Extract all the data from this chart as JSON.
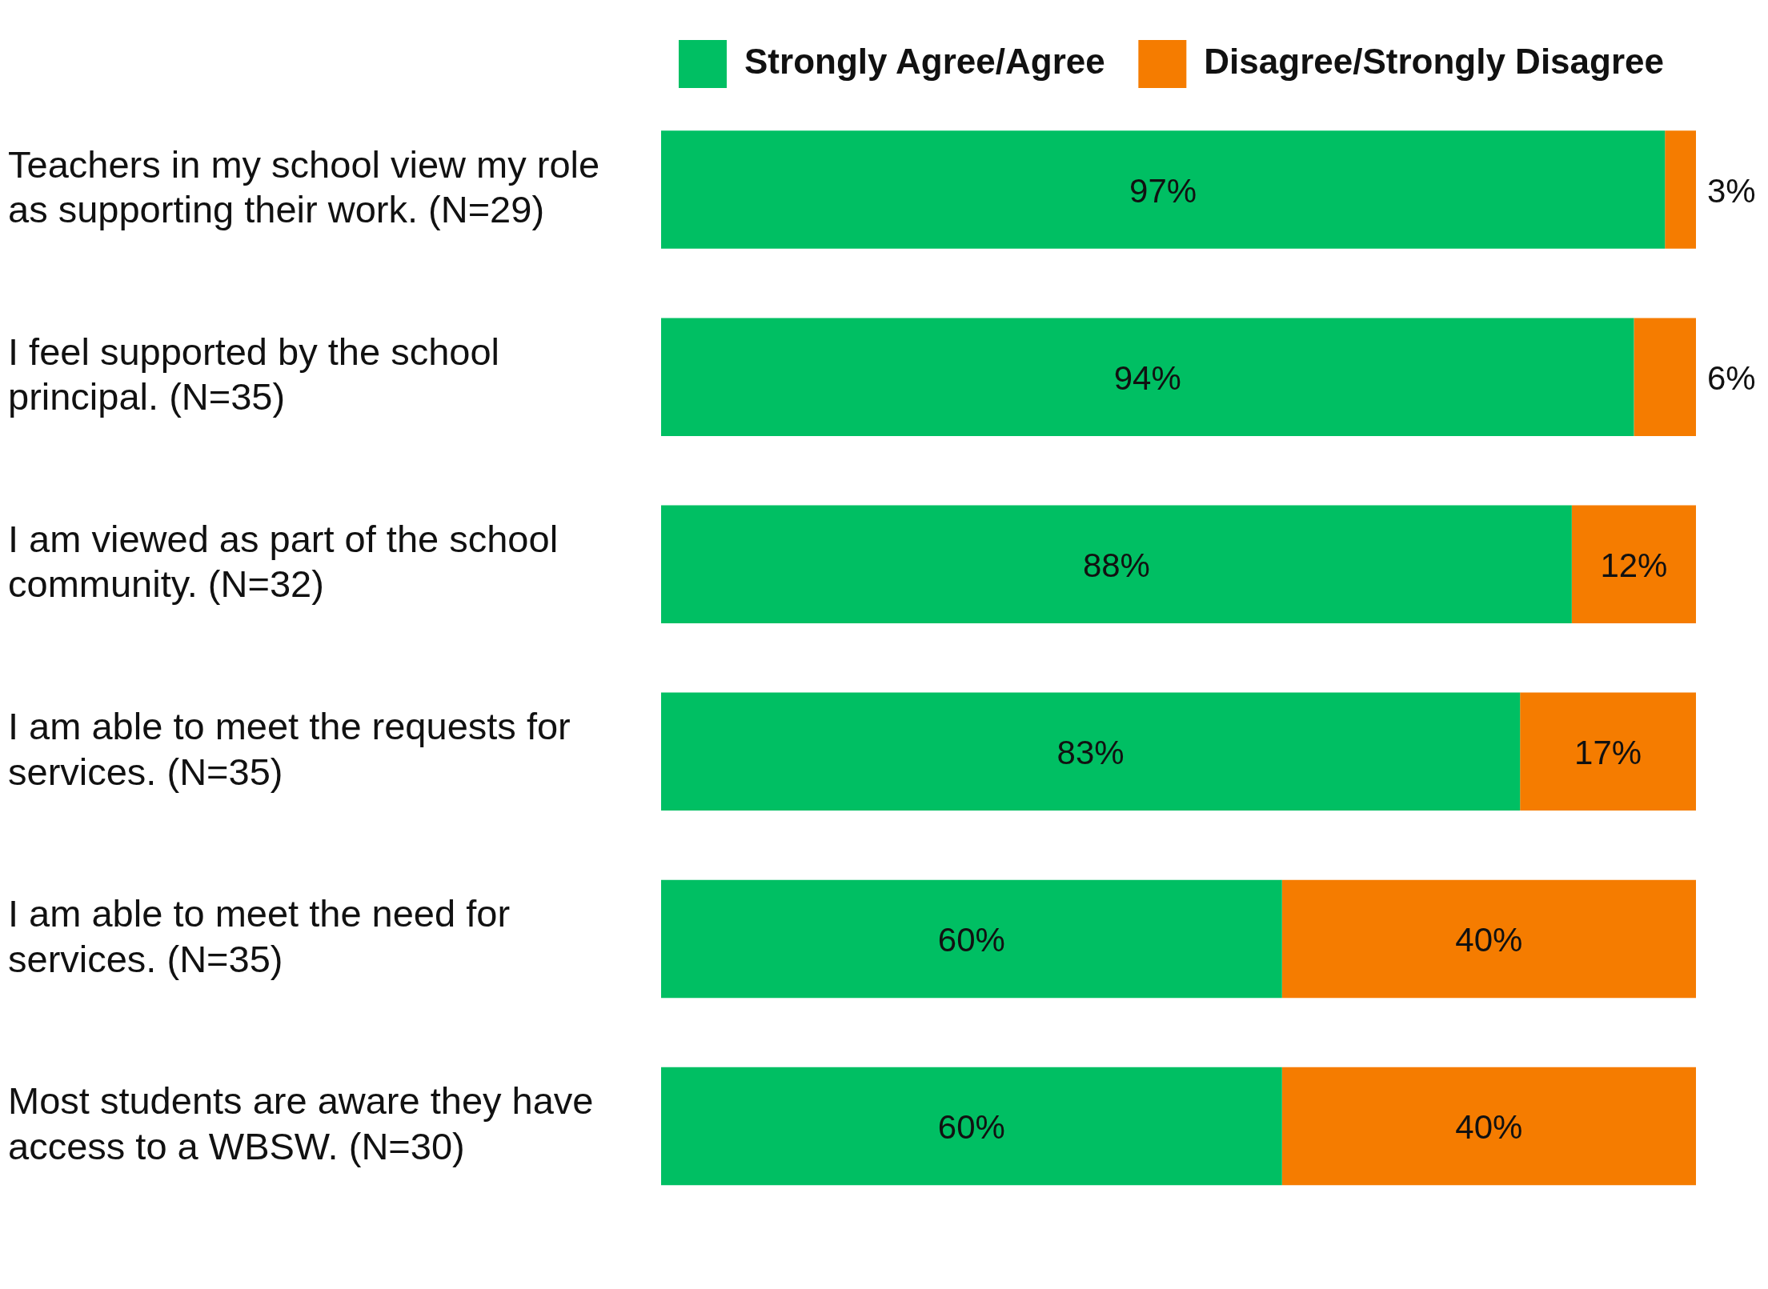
{
  "chart_data": {
    "type": "bar",
    "orientation": "horizontal",
    "stacked": true,
    "categories": [
      "Teachers in my school view my role as supporting their work. (N=29)",
      "I feel supported by the school principal. (N=35)",
      "I am viewed as part of the school community. (N=32)",
      "I am able to meet the requests for services. (N=35)",
      "I am able to meet the need for services. (N=35)",
      "Most students are aware they have access to a WBSW. (N=30)"
    ],
    "series": [
      {
        "name": "Strongly Agree/Agree",
        "color": "#00bf63",
        "values": [
          97,
          94,
          88,
          83,
          60,
          60
        ],
        "value_labels": [
          "97%",
          "94%",
          "88%",
          "83%",
          "60%",
          "60%"
        ]
      },
      {
        "name": "Disagree/Strongly Disagree",
        "color": "#f57c00",
        "values": [
          3,
          6,
          12,
          17,
          40,
          40
        ],
        "value_labels": [
          "3%",
          "6%",
          "12%",
          "17%",
          "40%",
          "40%"
        ]
      }
    ],
    "tick_labels": "y",
    "grid": false,
    "legend": "top right"
  }
}
